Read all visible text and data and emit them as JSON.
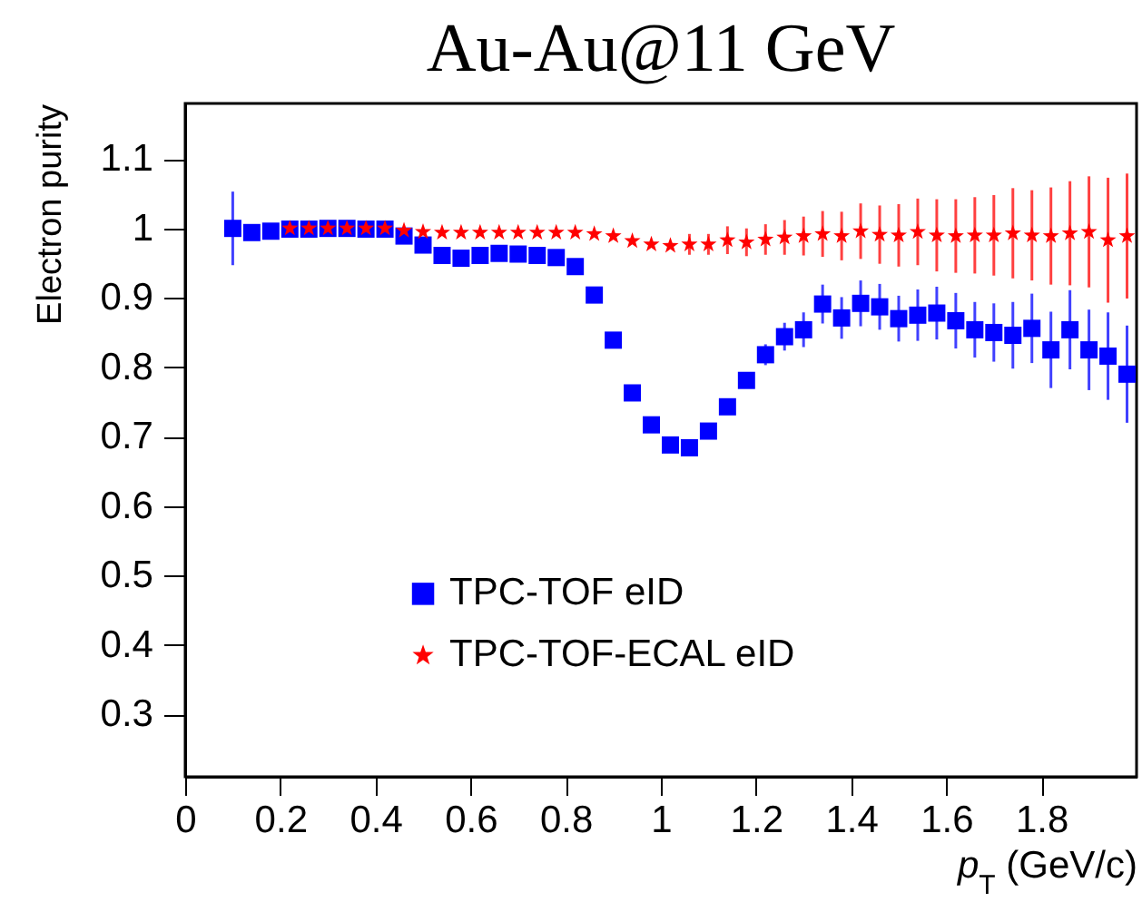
{
  "chart_data": {
    "type": "scatter",
    "title": "Au-Au@11 GeV",
    "xlabel": "p$_{T}$ (GeV/c)",
    "ylabel": "Electron purity",
    "x": [
      0.1,
      0.14,
      0.18,
      0.22,
      0.26,
      0.3,
      0.34,
      0.38,
      0.42,
      0.46,
      0.5,
      0.54,
      0.58,
      0.62,
      0.66,
      0.7,
      0.74,
      0.78,
      0.82,
      0.86,
      0.9,
      0.94,
      0.98,
      1.02,
      1.06,
      1.1,
      1.14,
      1.18,
      1.22,
      1.26,
      1.3,
      1.34,
      1.38,
      1.42,
      1.46,
      1.5,
      1.54,
      1.58,
      1.62,
      1.66,
      1.7,
      1.74,
      1.78,
      1.82,
      1.86,
      1.9,
      1.94,
      1.98
    ],
    "series": [
      {
        "name": "TPC-TOF eID",
        "color": "#0000ff",
        "marker": "square",
        "values": [
          1.0,
          0.994,
          0.996,
          0.999,
          0.999,
          1.0,
          1.0,
          0.999,
          0.999,
          0.989,
          0.976,
          0.961,
          0.957,
          0.961,
          0.964,
          0.963,
          0.961,
          0.958,
          0.945,
          0.904,
          0.839,
          0.763,
          0.717,
          0.688,
          0.684,
          0.708,
          0.743,
          0.781,
          0.818,
          0.844,
          0.854,
          0.891,
          0.871,
          0.892,
          0.887,
          0.87,
          0.875,
          0.878,
          0.867,
          0.854,
          0.85,
          0.846,
          0.856,
          0.825,
          0.854,
          0.825,
          0.816,
          0.79
        ],
        "errors": [
          0.053,
          null,
          null,
          null,
          null,
          null,
          null,
          null,
          null,
          null,
          null,
          null,
          null,
          null,
          null,
          null,
          null,
          null,
          null,
          null,
          null,
          null,
          null,
          null,
          null,
          null,
          0.01,
          0.01,
          0.015,
          0.02,
          0.025,
          0.028,
          0.03,
          0.033,
          0.033,
          0.033,
          0.037,
          0.038,
          0.04,
          0.04,
          0.042,
          0.048,
          0.05,
          0.055,
          0.057,
          0.058,
          0.063,
          0.07
        ]
      },
      {
        "name": "TPC-TOF-ECAL eID",
        "color": "#ff0000",
        "marker": "star",
        "x": [
          0.22,
          0.26,
          0.3,
          0.34,
          0.38,
          0.42,
          0.46,
          0.5,
          0.54,
          0.58,
          0.62,
          0.66,
          0.7,
          0.74,
          0.78,
          0.82,
          0.86,
          0.9,
          0.94,
          0.98,
          1.02,
          1.06,
          1.1,
          1.14,
          1.18,
          1.22,
          1.26,
          1.3,
          1.34,
          1.38,
          1.42,
          1.46,
          1.5,
          1.54,
          1.58,
          1.62,
          1.66,
          1.7,
          1.74,
          1.78,
          1.82,
          1.86,
          1.9,
          1.94,
          1.98
        ],
        "values": [
          1.0,
          1.0,
          1.0,
          1.0,
          1.0,
          1.0,
          0.997,
          0.995,
          0.994,
          0.994,
          0.994,
          0.994,
          0.994,
          0.994,
          0.994,
          0.994,
          0.992,
          0.989,
          0.982,
          0.977,
          0.975,
          0.977,
          0.977,
          0.983,
          0.98,
          0.984,
          0.987,
          0.989,
          0.992,
          0.989,
          0.996,
          0.991,
          0.99,
          0.995,
          0.99,
          0.989,
          0.99,
          0.99,
          0.993,
          0.99,
          0.989,
          0.993,
          0.995,
          0.983,
          0.989
        ],
        "errors": [
          null,
          null,
          null,
          null,
          null,
          null,
          null,
          null,
          null,
          null,
          null,
          null,
          null,
          null,
          null,
          null,
          null,
          null,
          null,
          null,
          null,
          0.015,
          0.015,
          0.02,
          0.02,
          0.022,
          0.025,
          0.028,
          0.033,
          0.035,
          0.04,
          0.042,
          0.045,
          0.048,
          0.052,
          0.053,
          0.055,
          0.058,
          0.065,
          0.065,
          0.07,
          0.075,
          0.08,
          0.09,
          0.09
        ]
      }
    ],
    "xlim": [
      0,
      2
    ],
    "xticks": [
      0,
      0.2,
      0.4,
      0.6,
      0.8,
      1,
      1.2,
      1.4,
      1.6,
      1.8
    ],
    "ylim": [
      0.21,
      1.18
    ],
    "yticks": [
      0.3,
      0.4,
      0.5,
      0.6,
      0.7,
      0.8,
      0.9,
      1,
      1.1
    ],
    "legend": "bottom",
    "grid": false
  }
}
